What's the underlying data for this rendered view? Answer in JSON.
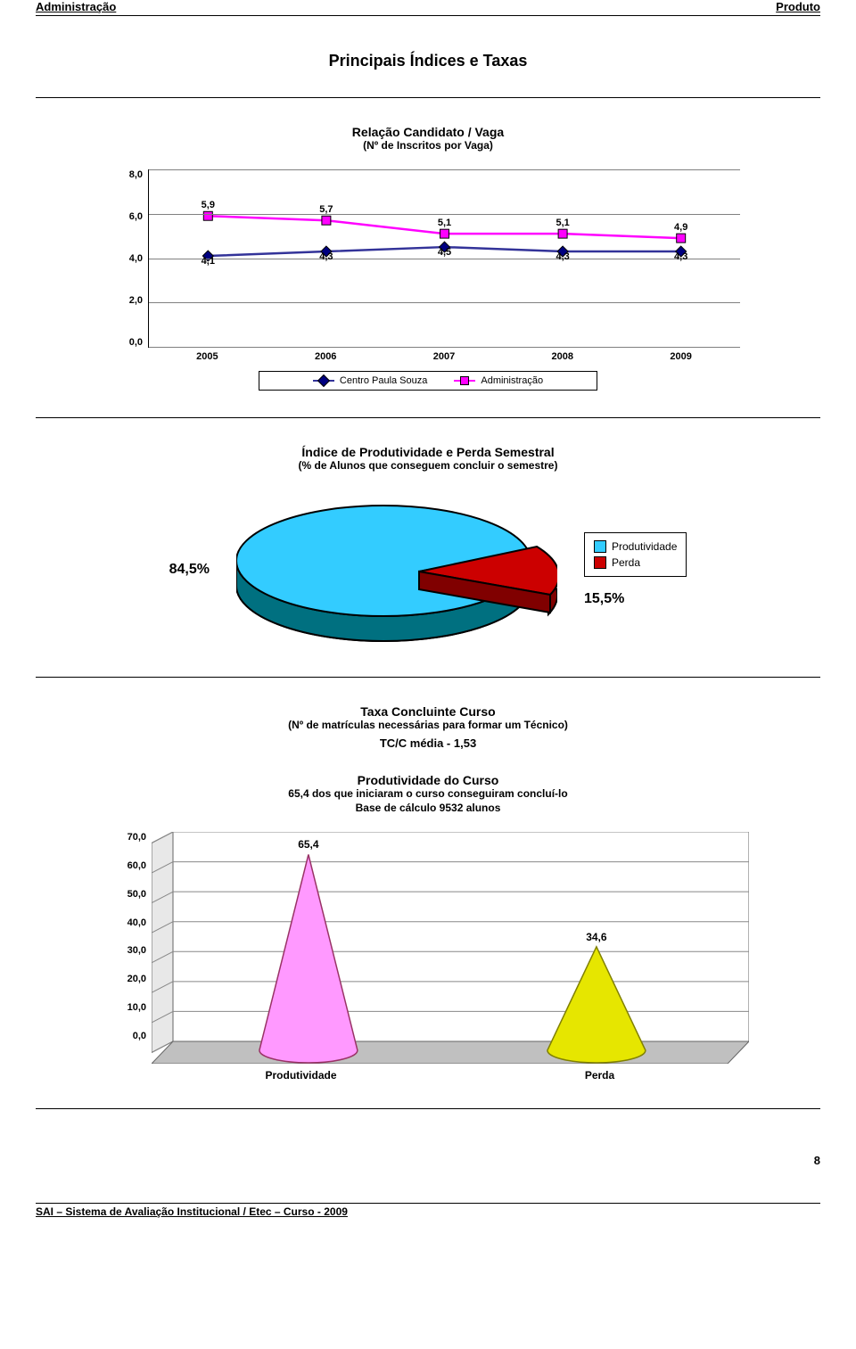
{
  "header": {
    "left": "Administração",
    "right": "Produto"
  },
  "page_title": "Principais Índices e Taxas",
  "line_chart": {
    "type": "line",
    "title": "Relação Candidato / Vaga",
    "subtitle": "(Nº de Inscritos por Vaga)",
    "categories": [
      "2005",
      "2006",
      "2007",
      "2008",
      "2009"
    ],
    "ylim": [
      0,
      8
    ],
    "ytick_step": 2,
    "ytick_labels": [
      "8,0",
      "6,0",
      "4,0",
      "2,0",
      "0,0"
    ],
    "series": [
      {
        "name": "Centro Paula Souza",
        "color_line": "#333399",
        "color_marker_fill": "#000080",
        "marker": "diamond",
        "labels": [
          "4,1",
          "4,3",
          "4,5",
          "4,3",
          "4,3"
        ],
        "values": [
          4.1,
          4.3,
          4.5,
          4.3,
          4.3
        ]
      },
      {
        "name": "Administração",
        "color_line": "#ff00ff",
        "color_marker_fill": "#ff00ff",
        "marker": "square",
        "labels": [
          "5,9",
          "5,7",
          "5,1",
          "5,1",
          "4,9"
        ],
        "values": [
          5.9,
          5.7,
          5.1,
          5.1,
          4.9
        ]
      }
    ],
    "grid_color": "#808080",
    "background_color": "#ffffff"
  },
  "pie_chart": {
    "type": "pie-3d",
    "title": "Índice de Produtividade e Perda Semestral",
    "subtitle": "(% de Alunos que conseguem concluir o semestre)",
    "slices": [
      {
        "name": "Produtividade",
        "label": "84,5%",
        "value": 84.5,
        "color": "#33ccff",
        "side_color": "#008080"
      },
      {
        "name": "Perda",
        "label": "15,5%",
        "value": 15.5,
        "color": "#cc0000",
        "side_color": "#800000"
      }
    ],
    "legend": [
      "Produtividade",
      "Perda"
    ]
  },
  "tcc": {
    "title": "Taxa Concluinte Curso",
    "subtitle": "(Nº de matrículas necessárias para formar um Técnico)",
    "metric": "TC/C média - 1,53"
  },
  "cone_chart": {
    "type": "cone-3d",
    "title": "Produtividade do Curso",
    "subtitle_line1": "65,4 dos que iniciaram o curso conseguiram concluí-lo",
    "subtitle_line2": "Base de cálculo 9532 alunos",
    "ylim": [
      0,
      70
    ],
    "ytick_step": 10,
    "ytick_labels": [
      "70,0",
      "60,0",
      "50,0",
      "40,0",
      "30,0",
      "20,0",
      "10,0",
      "0,0"
    ],
    "categories": [
      "Produtividade",
      "Perda"
    ],
    "items": [
      {
        "name": "Produtividade",
        "value": 65.4,
        "label": "65,4",
        "fill": "#ff99ff",
        "stroke": "#993366"
      },
      {
        "name": "Perda",
        "value": 34.6,
        "label": "34,6",
        "fill": "#e6e600",
        "stroke": "#808000"
      }
    ],
    "floor_color": "#c0c0c0",
    "grid_color": "#888888"
  },
  "page_number": "8",
  "footer": "SAI – Sistema de Avaliação Institucional / Etec – Curso - 2009"
}
